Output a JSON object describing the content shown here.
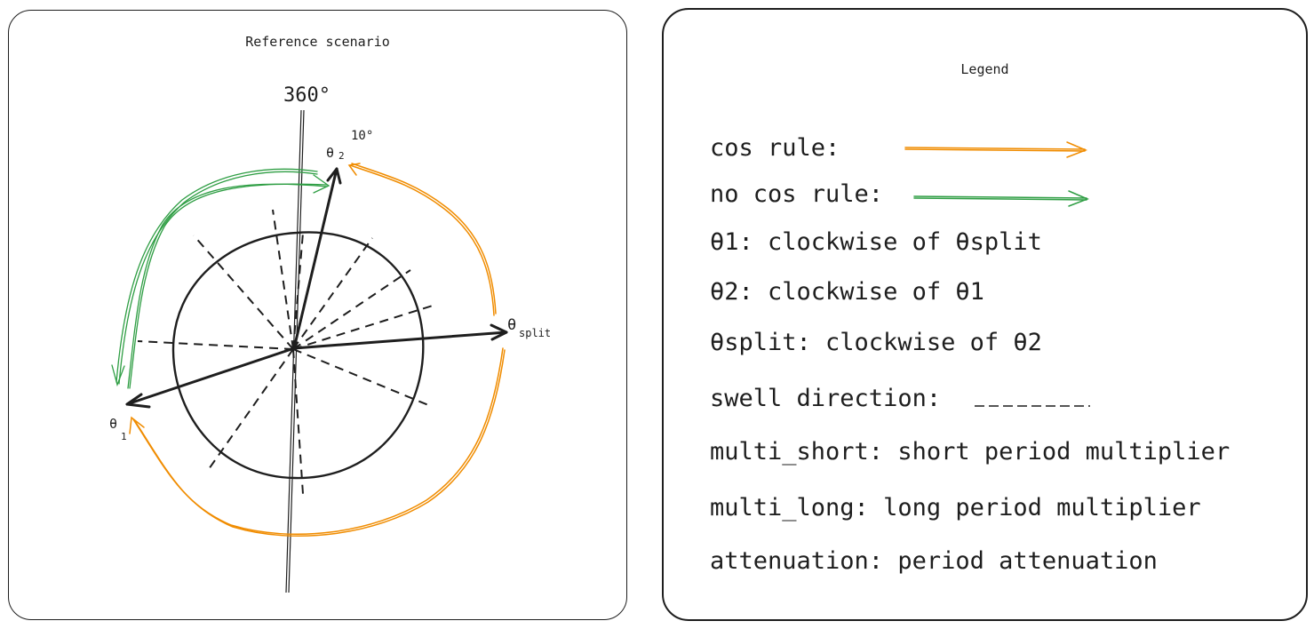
{
  "left_panel": {
    "title": "Reference scenario",
    "labels": {
      "north": "360°",
      "theta2_angle": "10°",
      "theta2_sym": "θ",
      "theta2_sub": "2",
      "theta1_sym": "θ",
      "theta1_sub": "1",
      "split_sym": "θ",
      "split_sub": "split"
    }
  },
  "right_panel": {
    "title": "Legend",
    "items": [
      {
        "text": "cos rule:"
      },
      {
        "text": "no cos rule:"
      },
      {
        "text": "θ1: clockwise of θsplit"
      },
      {
        "text": "θ2: clockwise of θ1"
      },
      {
        "text": "θsplit: clockwise of θ2"
      },
      {
        "text": "swell direction: "
      },
      {
        "text": "multi_short: short period multiplier"
      },
      {
        "text": "multi_long: long period multiplier"
      },
      {
        "text": "attenuation: period attenuation"
      }
    ]
  },
  "colors": {
    "ink": "#1e1e1e",
    "cos_rule": "#f08c00",
    "no_cos_rule": "#2f9e44"
  }
}
